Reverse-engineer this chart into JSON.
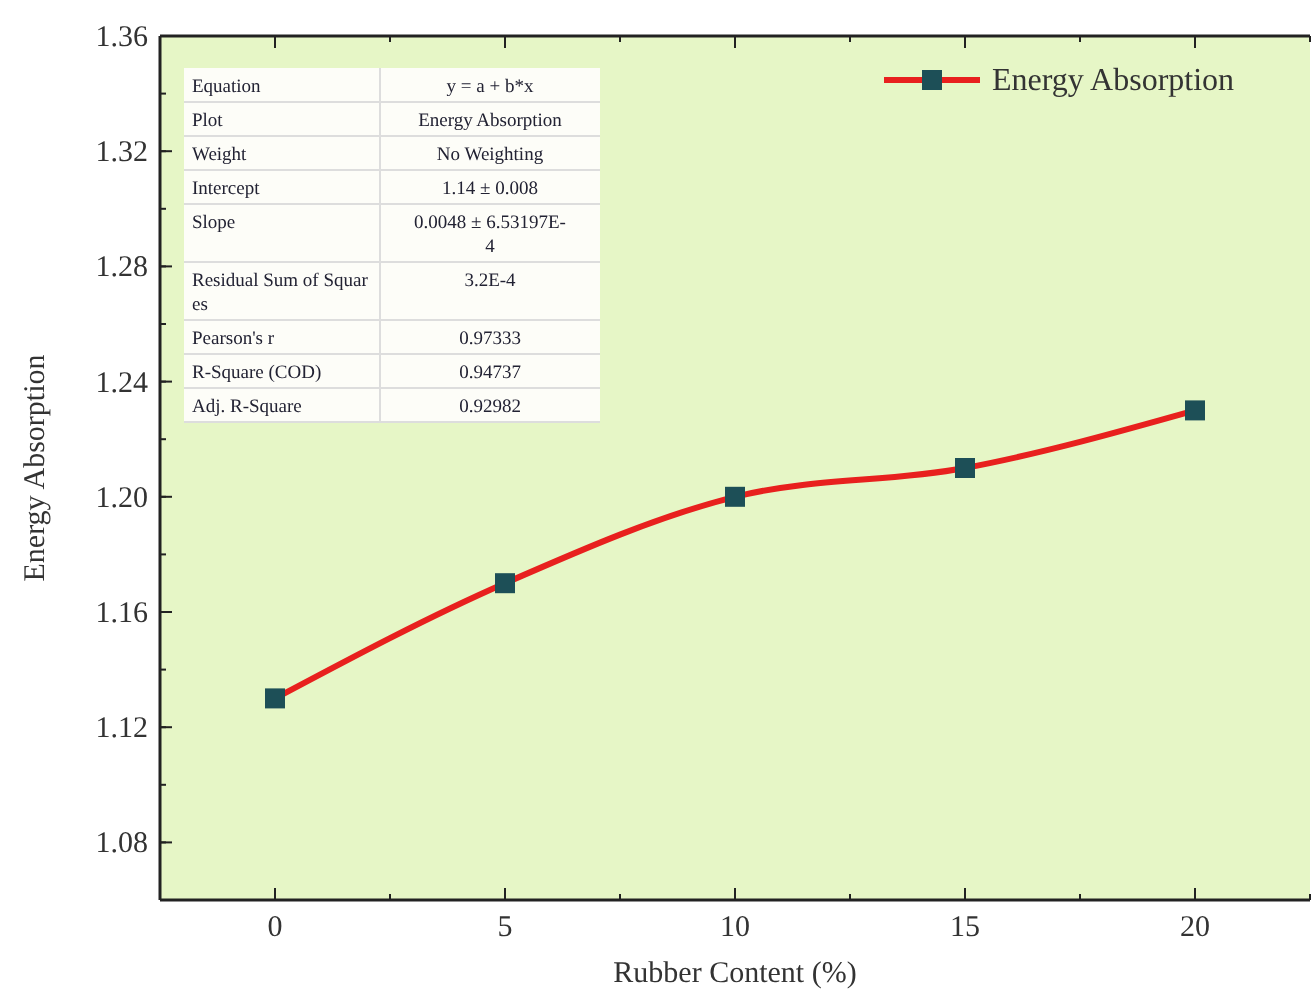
{
  "chart_data": {
    "type": "line",
    "xlabel": "Rubber Content (%)",
    "ylabel": "Energy Absorption",
    "x": [
      0,
      5,
      10,
      15,
      20
    ],
    "series": [
      {
        "name": "Energy Absorption",
        "color": "#e8201e",
        "values": [
          1.13,
          1.17,
          1.2,
          1.21,
          1.23
        ]
      }
    ],
    "xlim": [
      -2.5,
      22.5
    ],
    "xticks": [
      0,
      5,
      10,
      15,
      20
    ],
    "ylim": [
      1.06,
      1.36
    ],
    "yticks": [
      {
        "value": 1.08,
        "label": "1.08"
      },
      {
        "value": 1.12,
        "label": "1.12"
      },
      {
        "value": 1.16,
        "label": "1.16"
      },
      {
        "value": 1.2,
        "label": "1.20"
      },
      {
        "value": 1.24,
        "label": "1.24"
      },
      {
        "value": 1.28,
        "label": "1.28"
      },
      {
        "value": 1.32,
        "label": "1.32"
      },
      {
        "value": 1.36,
        "label": "1.36"
      }
    ],
    "marker": "square",
    "line_style": "solid",
    "grid": false,
    "legend": "top right",
    "annotations": [
      "Equation",
      "y = a + b*x",
      "Plot",
      "Energy Absorption",
      "Weight",
      "No Weighting",
      "Intercept",
      "1.14 ± 0.008",
      "Slope",
      "0.0048 ± 6.53197E-4",
      "Residual Sum of Squares",
      "3.2E-4",
      "Pearson's r",
      "0.97333",
      "R-Square (COD)",
      "0.94737",
      "Adj. R-Square",
      "0.92982"
    ]
  }
}
